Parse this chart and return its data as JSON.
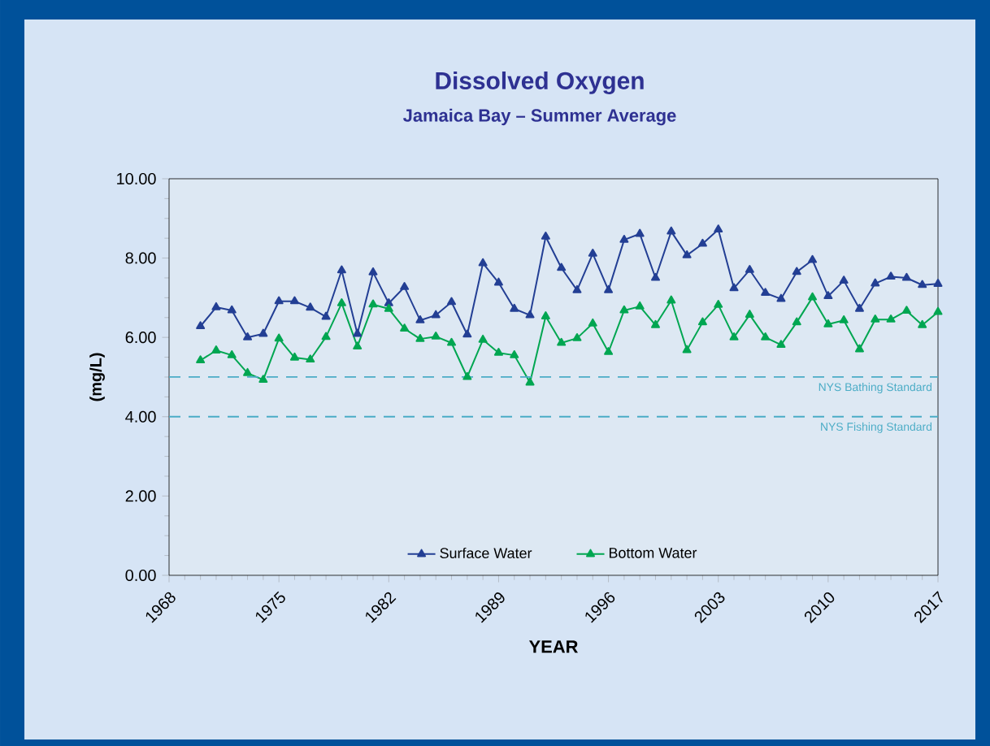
{
  "chart_data": {
    "type": "line",
    "title": "Dissolved Oxygen",
    "subtitle": "Jamaica Bay – Summer Average",
    "xlabel": "YEAR",
    "ylabel": "(mg/L)",
    "x": [
      1970,
      1971,
      1972,
      1973,
      1974,
      1975,
      1976,
      1977,
      1978,
      1979,
      1980,
      1981,
      1982,
      1983,
      1984,
      1985,
      1986,
      1987,
      1988,
      1989,
      1990,
      1991,
      1992,
      1993,
      1994,
      1995,
      1996,
      1997,
      1998,
      1999,
      2000,
      2001,
      2002,
      2003,
      2004,
      2005,
      2006,
      2007,
      2008,
      2009,
      2010,
      2011,
      2012,
      2013,
      2014,
      2015,
      2016,
      2017
    ],
    "series": [
      {
        "name": "Surface Water",
        "color": "#233f94",
        "values": [
          6.28,
          6.76,
          6.68,
          6.0,
          6.09,
          6.91,
          6.91,
          6.75,
          6.52,
          7.69,
          6.09,
          7.64,
          6.86,
          7.27,
          6.43,
          6.56,
          6.89,
          6.07,
          7.87,
          7.38,
          6.72,
          6.56,
          8.54,
          7.75,
          7.19,
          8.11,
          7.19,
          8.46,
          8.61,
          7.5,
          8.67,
          8.07,
          8.36,
          8.72,
          7.24,
          7.7,
          7.12,
          6.97,
          7.65,
          7.95,
          7.04,
          7.43,
          6.72,
          7.36,
          7.53,
          7.5,
          7.32,
          7.35
        ]
      },
      {
        "name": "Bottom Water",
        "color": "#00a651",
        "values": [
          5.42,
          5.67,
          5.55,
          5.1,
          4.93,
          5.97,
          5.49,
          5.44,
          6.01,
          6.86,
          5.77,
          6.83,
          6.72,
          6.22,
          5.96,
          6.02,
          5.86,
          5.0,
          5.94,
          5.61,
          5.55,
          4.86,
          6.53,
          5.86,
          5.98,
          6.35,
          5.63,
          6.68,
          6.78,
          6.31,
          6.93,
          5.68,
          6.38,
          6.82,
          6.0,
          6.57,
          6.0,
          5.81,
          6.38,
          7.01,
          6.33,
          6.43,
          5.7,
          6.45,
          6.45,
          6.67,
          6.31,
          6.64
        ]
      }
    ],
    "xlim": [
      1968,
      2017
    ],
    "xticks": [
      1968,
      1975,
      1982,
      1989,
      1996,
      2003,
      2010,
      2017
    ],
    "ylim": [
      0,
      10
    ],
    "yticks": [
      {
        "value": 0,
        "label": "0.00"
      },
      {
        "value": 2,
        "label": "2.00"
      },
      {
        "value": 4,
        "label": "4.00"
      },
      {
        "value": 6,
        "label": "6.00"
      },
      {
        "value": 8,
        "label": "8.00"
      },
      {
        "value": 10,
        "label": "10.00"
      }
    ],
    "ref_lines": [
      {
        "axis": "y",
        "value": 5,
        "label": "NYS Bathing Standard",
        "color": "#4bacc6",
        "line_style": "dashed"
      },
      {
        "axis": "y",
        "value": 4,
        "label": "NYS Fishing Standard",
        "color": "#4bacc6",
        "line_style": "dashed"
      }
    ],
    "legend": "bottom",
    "marker": "triangle",
    "line_style": "solid",
    "grid": false
  }
}
